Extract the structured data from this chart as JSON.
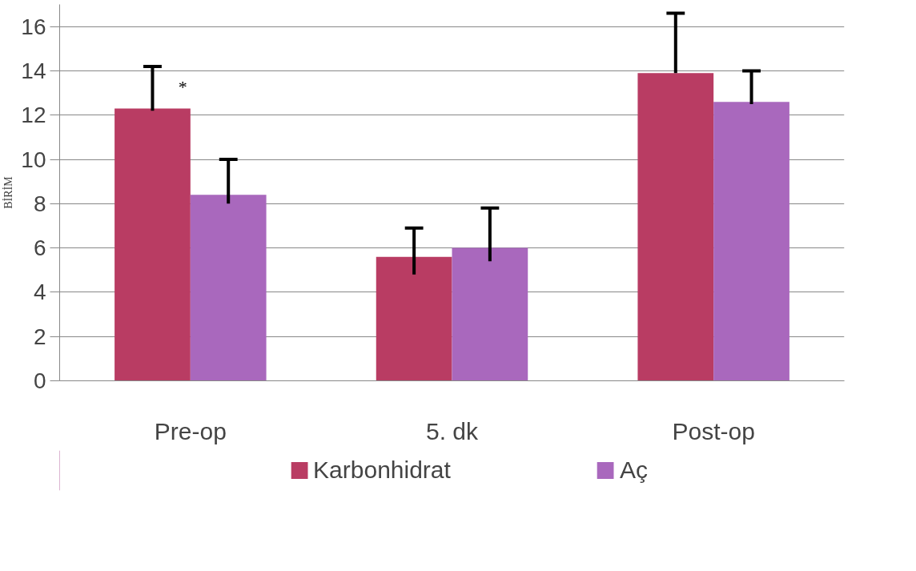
{
  "chart_data": {
    "type": "bar",
    "ylabel": "BİRİM",
    "categories": [
      "Pre-op",
      "5. dk",
      "Post-op"
    ],
    "series": [
      {
        "name": "Karbonhidrat",
        "color": "#b93c63",
        "values": [
          12.3,
          5.6,
          13.9
        ],
        "errors": [
          [
            12.2,
            14.2
          ],
          [
            4.8,
            6.9
          ],
          [
            13.9,
            16.6
          ]
        ]
      },
      {
        "name": "Aç",
        "color": "#a968bd",
        "values": [
          8.4,
          6.0,
          12.6
        ],
        "errors": [
          [
            8.0,
            10.0
          ],
          [
            5.4,
            7.8
          ],
          [
            12.5,
            14.0
          ]
        ]
      }
    ],
    "ylim": [
      0,
      17
    ],
    "yticks": [
      0,
      2,
      4,
      6,
      8,
      10,
      12,
      14,
      16
    ],
    "grid": "y",
    "legend": "bottom",
    "annotations": [
      "*"
    ]
  }
}
